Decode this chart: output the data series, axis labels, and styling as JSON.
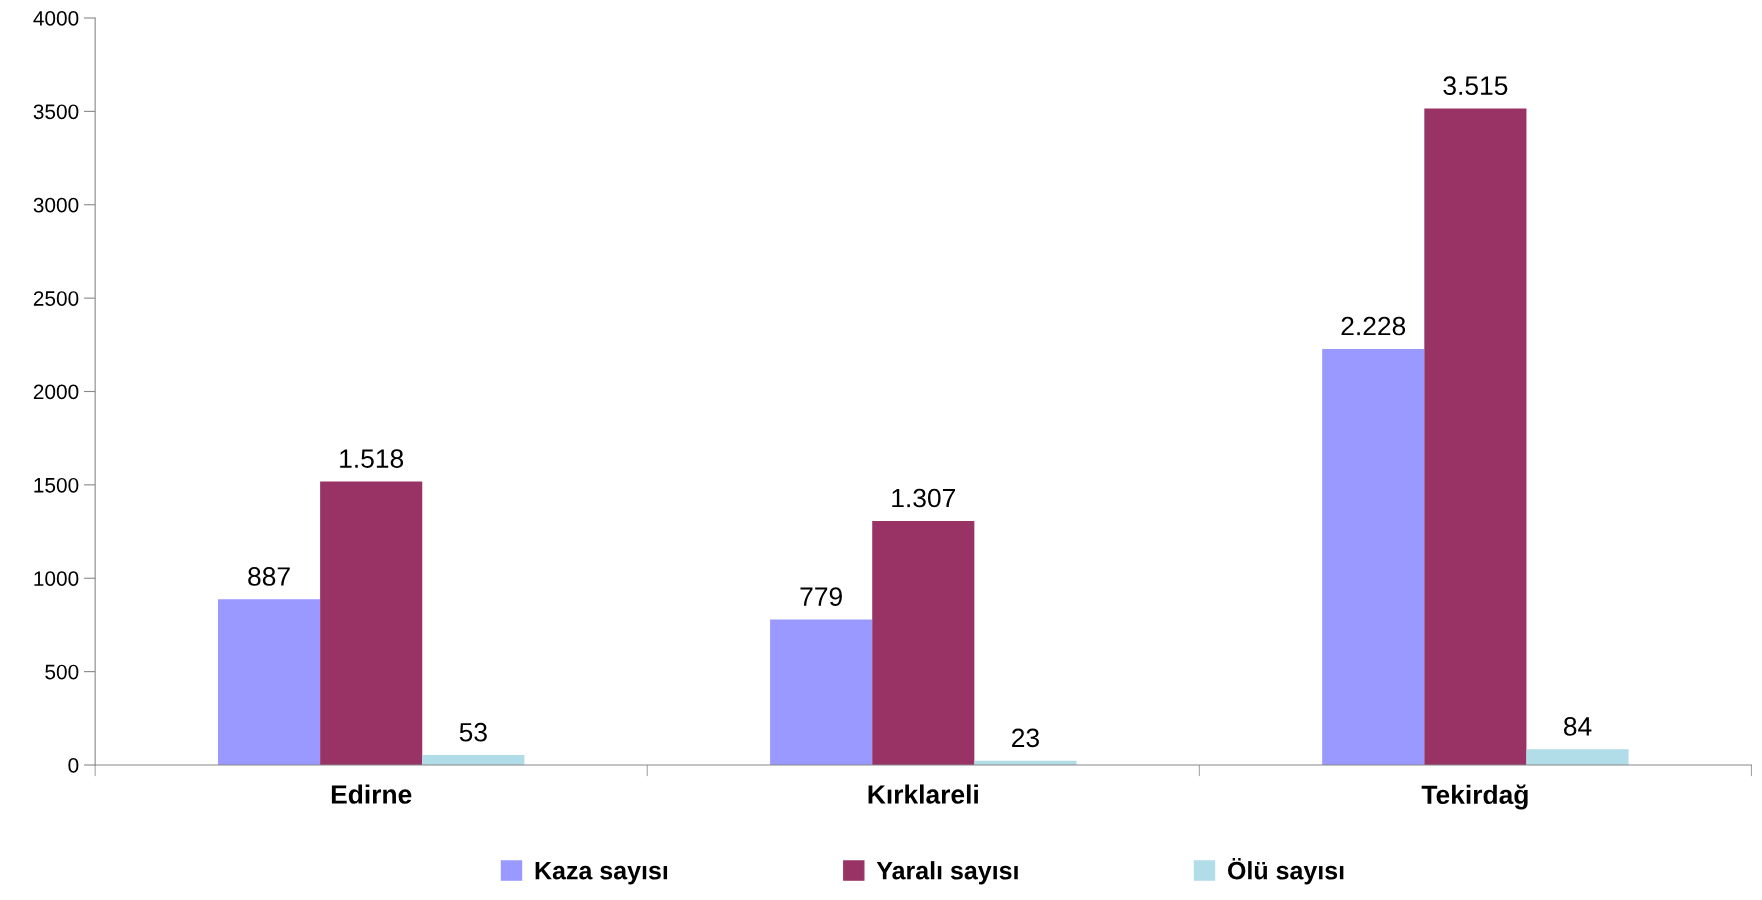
{
  "chart_data": {
    "type": "bar",
    "categories": [
      "Edirne",
      "Kırklareli",
      "Tekirdağ"
    ],
    "series": [
      {
        "name": "Kaza sayısı",
        "color": "#9999ff",
        "values": [
          887,
          779,
          2228
        ],
        "value_labels": [
          "887",
          "779",
          "2.228"
        ]
      },
      {
        "name": "Yaralı sayısı",
        "color": "#993366",
        "values": [
          1518,
          1307,
          3515
        ],
        "value_labels": [
          "1.518",
          "1.307",
          "3.515"
        ]
      },
      {
        "name": "Ölü sayısı",
        "color": "#b0dde8",
        "values": [
          53,
          23,
          84
        ],
        "value_labels": [
          "53",
          "23",
          "84"
        ]
      }
    ],
    "ylim": [
      0,
      4000
    ],
    "yticks": [
      0,
      500,
      1000,
      1500,
      2000,
      2500,
      3000,
      3500,
      4000
    ],
    "grid": false,
    "legend": "bottom"
  }
}
